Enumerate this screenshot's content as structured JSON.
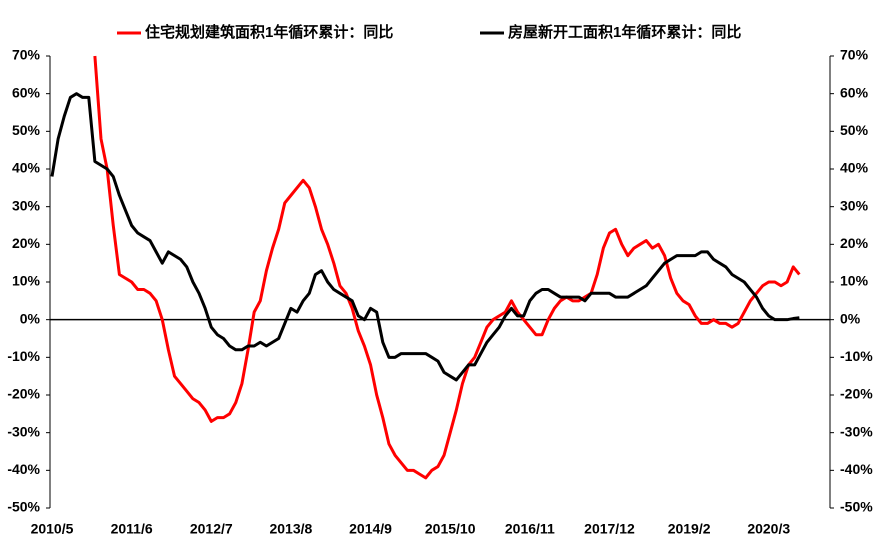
{
  "chart_data": {
    "type": "line",
    "categories": [
      "2010/5",
      null,
      null,
      null,
      null,
      null,
      null,
      null,
      null,
      null,
      null,
      null,
      null,
      "2011/6",
      null,
      null,
      null,
      null,
      null,
      null,
      null,
      null,
      null,
      null,
      null,
      null,
      "2012/7",
      null,
      null,
      null,
      null,
      null,
      null,
      null,
      null,
      null,
      null,
      null,
      null,
      "2013/8",
      null,
      null,
      null,
      null,
      null,
      null,
      null,
      null,
      null,
      null,
      null,
      null,
      "2014/9",
      null,
      null,
      null,
      null,
      null,
      null,
      null,
      null,
      null,
      null,
      null,
      null,
      "2015/10",
      null,
      null,
      null,
      null,
      null,
      null,
      null,
      null,
      null,
      null,
      null,
      null,
      "2016/11",
      null,
      null,
      null,
      null,
      null,
      null,
      null,
      null,
      null,
      null,
      null,
      null,
      "2017/12",
      null,
      null,
      null,
      null,
      null,
      null,
      null,
      null,
      null,
      null,
      null,
      null,
      "2019/2",
      null,
      null,
      null,
      null,
      null,
      null,
      null,
      null,
      null,
      null,
      null,
      null,
      "2020/3",
      null,
      null,
      null,
      null,
      null
    ],
    "series": [
      {
        "name": "住宅规划建筑面积1年循环累计：同比",
        "color": "#ff0000",
        "values": [
          null,
          null,
          null,
          null,
          null,
          null,
          null,
          70,
          48,
          40,
          25,
          12,
          11,
          10,
          8,
          8,
          7,
          5,
          0,
          -8,
          -15,
          -17,
          -19,
          -21,
          -22,
          -24,
          -27,
          -26,
          -26,
          -25,
          -22,
          -17,
          -8,
          2,
          5,
          13,
          19,
          24,
          31,
          33,
          35,
          37,
          35,
          30,
          24,
          20,
          15,
          9,
          7,
          3,
          -3,
          -7,
          -12,
          -20,
          -26,
          -33,
          -36,
          -38,
          -40,
          -40,
          -41,
          -42,
          -40,
          -39,
          -36,
          -30,
          -24,
          -17,
          -12,
          -10,
          -6,
          -2,
          0,
          1,
          2,
          5,
          2,
          0,
          -2,
          -4,
          -4,
          0,
          3,
          5,
          6,
          5,
          5,
          6,
          7,
          12,
          19,
          23,
          24,
          20,
          17,
          19,
          20,
          21,
          19,
          20,
          17,
          11,
          7,
          5,
          4,
          1,
          -1,
          -1,
          0,
          -1,
          -1,
          -2,
          -1,
          2,
          5,
          7,
          9,
          10,
          10,
          9,
          10,
          14,
          12
        ]
      },
      {
        "name": "房屋新开工面积1年循环累计：同比",
        "color": "#000000",
        "values": [
          38,
          48,
          54,
          59,
          60,
          59,
          59,
          42,
          41,
          40,
          38,
          33,
          29,
          25,
          23,
          22,
          21,
          18,
          15,
          18,
          17,
          16,
          14,
          10,
          7,
          3,
          -2,
          -4,
          -5,
          -7,
          -8,
          -8,
          -7,
          -7,
          -6,
          -7,
          -6,
          -5,
          -1,
          3,
          2,
          5,
          7,
          12,
          13,
          10,
          8,
          7,
          6,
          5,
          1,
          0,
          3,
          2,
          -6,
          -10,
          -10,
          -9,
          -9,
          -9,
          -9,
          -9,
          -10,
          -11,
          -14,
          -15,
          -16,
          -14,
          -12,
          -12,
          -9,
          -6,
          -4,
          -2,
          1,
          3,
          1,
          1,
          5,
          7,
          8,
          8,
          7,
          6,
          6,
          6,
          6,
          5,
          7,
          7,
          7,
          7,
          6,
          6,
          6,
          7,
          8,
          9,
          11,
          13,
          15,
          16,
          17,
          17,
          17,
          17,
          18,
          18,
          16,
          15,
          14,
          12,
          11,
          10,
          8,
          6,
          3,
          1,
          0,
          0,
          0,
          0.3,
          0.5
        ]
      }
    ],
    "ylim": [
      -50,
      70
    ],
    "yticks": [
      {
        "value": -50,
        "label": "-50%"
      },
      {
        "value": -40,
        "label": "-40%"
      },
      {
        "value": -30,
        "label": "-30%"
      },
      {
        "value": -20,
        "label": "-20%"
      },
      {
        "value": -10,
        "label": "-10%"
      },
      {
        "value": 0,
        "label": "0%"
      },
      {
        "value": 10,
        "label": "10%"
      },
      {
        "value": 20,
        "label": "20%"
      },
      {
        "value": 30,
        "label": "30%"
      },
      {
        "value": 40,
        "label": "40%"
      },
      {
        "value": 50,
        "label": "50%"
      },
      {
        "value": 60,
        "label": "60%"
      },
      {
        "value": 70,
        "label": "70%"
      }
    ],
    "y2lim": [
      -50,
      70
    ],
    "y2ticks": [
      {
        "value": -50,
        "label": "-50%"
      },
      {
        "value": -40,
        "label": "-40%"
      },
      {
        "value": -30,
        "label": "-30%"
      },
      {
        "value": -20,
        "label": "-20%"
      },
      {
        "value": -10,
        "label": "-10%"
      },
      {
        "value": 0,
        "label": "0%"
      },
      {
        "value": 10,
        "label": "10%"
      },
      {
        "value": 20,
        "label": "20%"
      },
      {
        "value": 30,
        "label": "30%"
      },
      {
        "value": 40,
        "label": "40%"
      },
      {
        "value": 50,
        "label": "50%"
      },
      {
        "value": 60,
        "label": "60%"
      },
      {
        "value": 70,
        "label": "70%"
      }
    ],
    "legend": "top"
  }
}
